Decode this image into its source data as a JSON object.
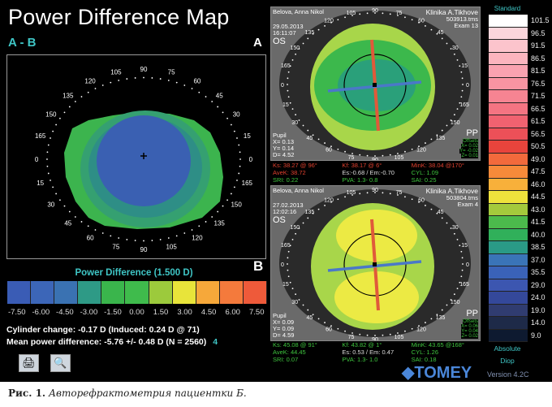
{
  "title": "Power Difference Map",
  "subtitle": "A - B",
  "label_a": "A",
  "label_b": "B",
  "angle_labels": [
    "0",
    "15",
    "30",
    "45",
    "60",
    "75",
    "90",
    "105",
    "120",
    "135",
    "150",
    "165",
    "0",
    "15",
    "30",
    "45",
    "60",
    "75",
    "90",
    "105",
    "120",
    "135",
    "150",
    "165"
  ],
  "legend": {
    "title": "Power Difference (1.500 D)",
    "colors": [
      "#3a5cb5",
      "#3c66b8",
      "#3a72b2",
      "#2e9a86",
      "#3ab54c",
      "#3fbb4c",
      "#9cca3c",
      "#e8e43a",
      "#f6a83a",
      "#f47a3c",
      "#ee5a3a"
    ],
    "labels": [
      "-7.50",
      "-6.00",
      "-4.50",
      "-3.00",
      "-1.50",
      "0.00",
      "1.50",
      "3.00",
      "4.50",
      "6.00",
      "7.50"
    ]
  },
  "cylinder_change": "Cylinder change: -0.17 D (Induced:  0.24 D @  71)",
  "mean_power": "Mean power difference: -5.76 +/-  0.48 D (N = 2560)",
  "mean_power_n": "4",
  "exam_a": {
    "name": "Belova, Anna Nikol",
    "clinic": "Klinika A.Tikhove",
    "file": "503913.tms",
    "exam": "Exam 13",
    "date": "29.05.2013",
    "time": "16:11:07",
    "eye": "OS",
    "pp": "PP",
    "pupil": [
      "Pupil",
      "X= 0.13",
      "Y= 0.14",
      "D= 4.52"
    ],
    "offsets": [
      "Offsets",
      "X= 0.02",
      "Y= -0.02",
      "Z= 0.01"
    ],
    "ks": "Ks: 38.27 @ 96°",
    "kf": "Kf: 38.17 @ 6°",
    "mink": "MinK: 38.04 @170°",
    "avek": "AveK: 38.72",
    "es": "Es:-0.68 / Em:-0.70",
    "cyl": "CYL: 1.09",
    "sri": "SRI: 0.22",
    "pva": "PVA:  1.3- 0.8",
    "sai": "SAI: 0.25"
  },
  "exam_b": {
    "name": "Belova, Anna Nikol",
    "clinic": "Klinika A.Tikhove",
    "file": "503804.tms",
    "exam": "Exam 4",
    "date": "27.02.2013",
    "time": "12:02:16",
    "eye": "OS",
    "pp": "PP",
    "pupil": [
      "Pupil",
      "X= 0.09",
      "Y= 0.09",
      "D= 4.59"
    ],
    "offsets": [
      "Offsets",
      "X= 0.06",
      "Y= 0.04",
      "Z= 0.02"
    ],
    "ks": "Ks: 45.08 @ 91°",
    "kf": "Kf: 43.82 @ 1°",
    "mink": "MinK: 43.65 @168°",
    "avek": "AveK: 44.45",
    "es": "Es: 0.53 / Em: 0.47",
    "cyl": "CYL: 1.26",
    "sri": "SRI: 0.07",
    "pva": "PVA:  1.3- 1.0",
    "sai": "SAI: 0.18"
  },
  "brand": "TOMEY",
  "scale": {
    "title": "Standard",
    "mode": "Absolute",
    "unit": "Diop",
    "version": "Version 4.2C",
    "colors": [
      "#ffffff",
      "#fcd6dc",
      "#fcc4cc",
      "#fbb4be",
      "#f9a2b0",
      "#f894a2",
      "#f68492",
      "#f47482",
      "#f06270",
      "#ec5058",
      "#e8443c",
      "#f26a3c",
      "#f68a3a",
      "#f8b03a",
      "#eee23c",
      "#a4ca3c",
      "#4cba4c",
      "#30b05a",
      "#2a9a86",
      "#3a74b8",
      "#3a62b8",
      "#3c56b0",
      "#34489a",
      "#303c70",
      "#1e2a48",
      "#0e1a30"
    ],
    "labels": [
      "101.5",
      "96.5",
      "91.5",
      "86.5",
      "81.5",
      "76.5",
      "71.5",
      "66.5",
      "61.5",
      "56.5",
      "50.5",
      "49.0",
      "47.5",
      "46.0",
      "44.5",
      "43.0",
      "41.5",
      "40.0",
      "38.5",
      "37.0",
      "35.5",
      "29.0",
      "24.0",
      "19.0",
      "14.0",
      "9.0"
    ]
  },
  "caption_prefix": "Рис. 1.",
  "caption_text": " Авторефрактометрия пациентки Б.",
  "buttons": {
    "compare": "compare-icon",
    "zoom": "zoom-icon"
  }
}
